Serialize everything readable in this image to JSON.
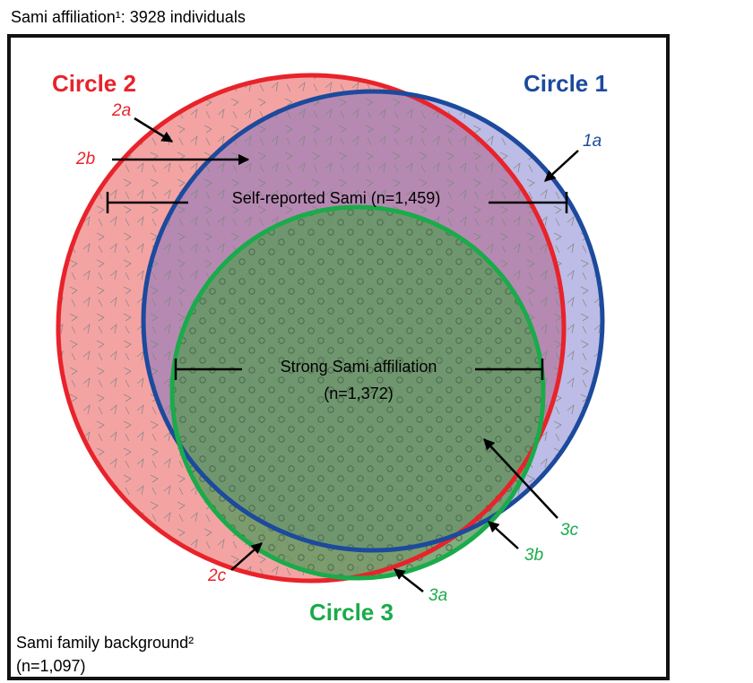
{
  "title": "Sami affiliation¹: 3928 individuals",
  "circles": [
    {
      "label": "Circle 1",
      "region_label": "Self-reported Sami (n=1,459)"
    },
    {
      "label": "Circle 2"
    },
    {
      "label": "Circle 3",
      "region_label": [
        "Strong Sami affiliation",
        "(n=1,372)"
      ]
    }
  ],
  "annotations": [
    "1a",
    "2a",
    "2b",
    "2c",
    "3a",
    "3b",
    "3c"
  ],
  "outer_label": [
    "Sami family background²",
    "(n=1,097)"
  ]
}
